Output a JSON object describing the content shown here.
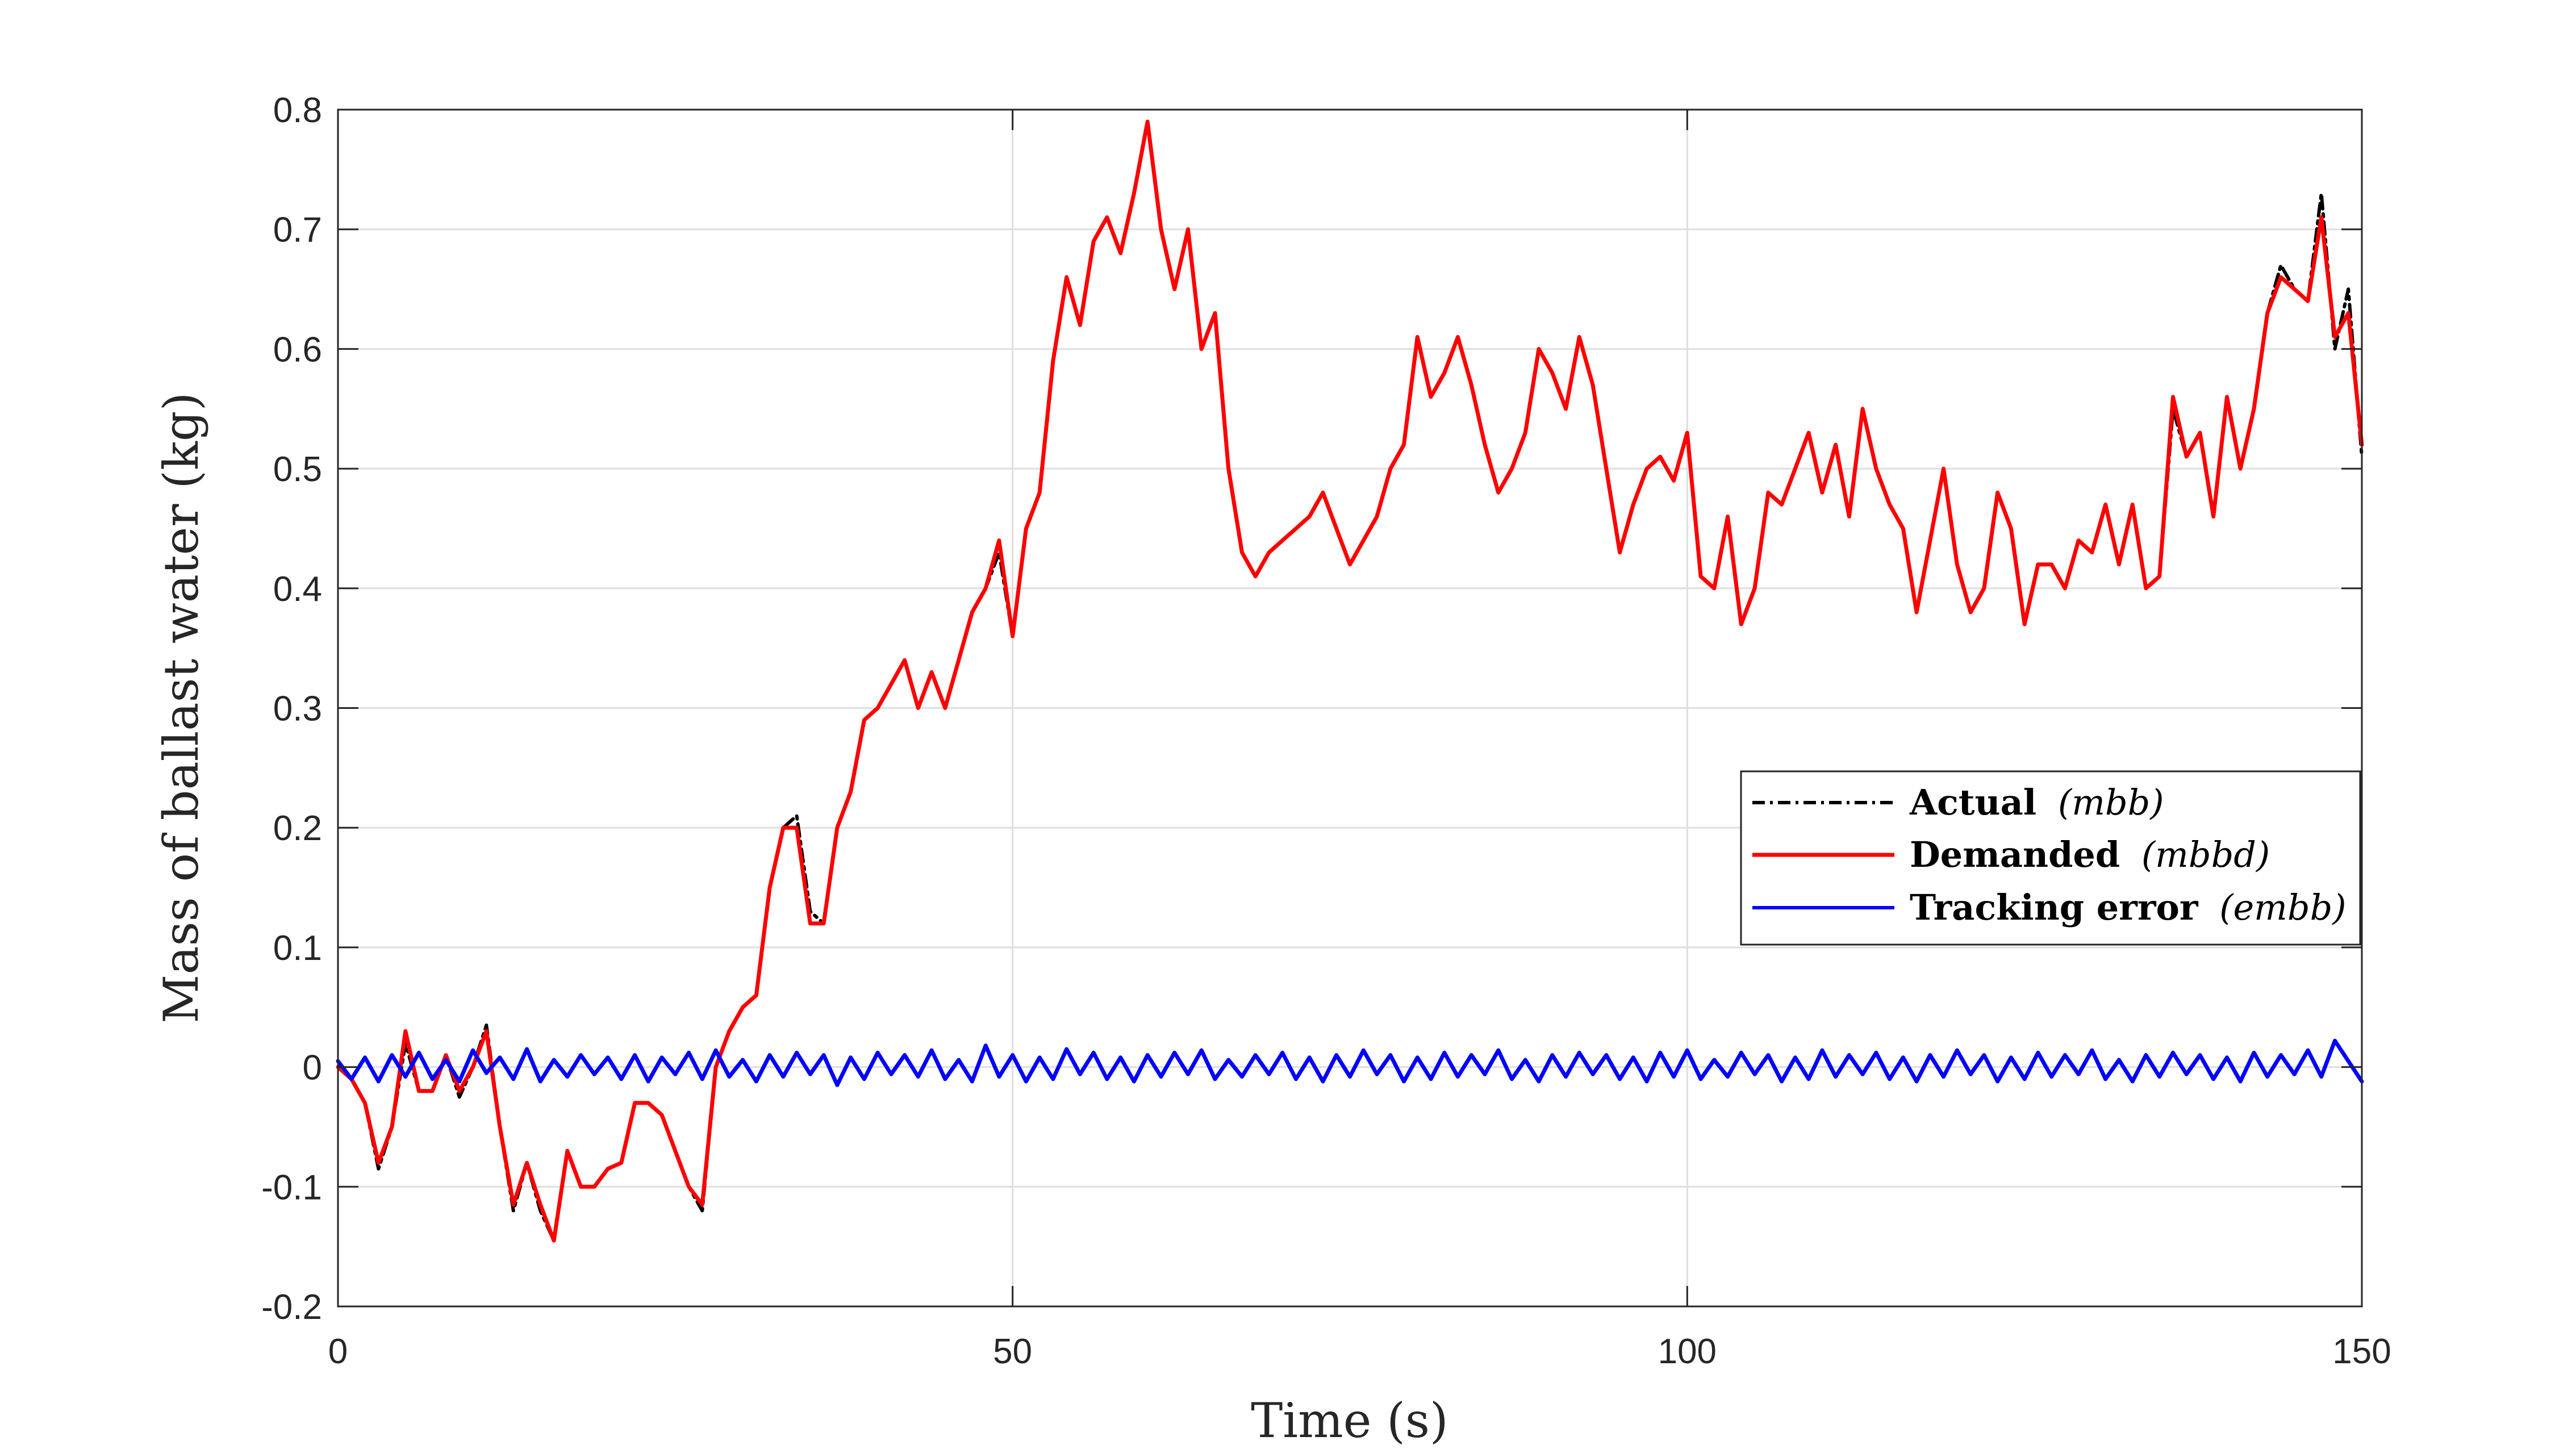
{
  "chart_data": {
    "type": "line",
    "title": "",
    "xlabel": "Time (s)",
    "ylabel": "Mass of ballast water (kg)",
    "xlim": [
      0,
      150
    ],
    "ylim": [
      -0.2,
      0.8
    ],
    "xticks": [
      0,
      50,
      100,
      150
    ],
    "yticks": [
      -0.2,
      -0.1,
      0,
      0.1,
      0.2,
      0.3,
      0.4,
      0.5,
      0.6,
      0.7,
      0.8
    ],
    "xtick_labels": [
      "0",
      "50",
      "100",
      "150"
    ],
    "ytick_labels": [
      "-0.2",
      "-0.1",
      "0",
      "0.1",
      "0.2",
      "0.3",
      "0.4",
      "0.5",
      "0.6",
      "0.7",
      "0.8"
    ],
    "grid": true,
    "legend_position": "right",
    "series": [
      {
        "name": "Actual (m_bb)",
        "label_bold": "Actual",
        "label_math": "(mbb)",
        "color": "#000000",
        "style": "dash-dot",
        "x": [
          0,
          1,
          2,
          3,
          4,
          5,
          6,
          7,
          8,
          9,
          10,
          11,
          12,
          13,
          14,
          15,
          16,
          17,
          18,
          19,
          20,
          21,
          22,
          23,
          24,
          25,
          26,
          27,
          28,
          29,
          30,
          31,
          32,
          33,
          34,
          35,
          36,
          37,
          38,
          39,
          40,
          41,
          42,
          43,
          44,
          45,
          46,
          47,
          48,
          49,
          50,
          51,
          52,
          53,
          54,
          55,
          56,
          57,
          58,
          59,
          60,
          61,
          62,
          63,
          64,
          65,
          66,
          67,
          68,
          69,
          70,
          71,
          72,
          73,
          74,
          75,
          76,
          77,
          78,
          79,
          80,
          81,
          82,
          83,
          84,
          85,
          86,
          87,
          88,
          89,
          90,
          91,
          92,
          93,
          94,
          95,
          96,
          97,
          98,
          99,
          100,
          101,
          102,
          103,
          104,
          105,
          106,
          107,
          108,
          109,
          110,
          111,
          112,
          113,
          114,
          115,
          116,
          117,
          118,
          119,
          120,
          121,
          122,
          123,
          124,
          125,
          126,
          127,
          128,
          129,
          130,
          131,
          132,
          133,
          134,
          135,
          136,
          137,
          138,
          139,
          140,
          141,
          142,
          143,
          144,
          145,
          146,
          147,
          148,
          149,
          150
        ],
        "y": [
          0.0,
          -0.01,
          -0.03,
          -0.085,
          -0.05,
          0.02,
          -0.02,
          -0.02,
          0.01,
          -0.025,
          0.0,
          0.035,
          -0.05,
          -0.12,
          -0.08,
          -0.12,
          -0.145,
          -0.07,
          -0.1,
          -0.1,
          -0.085,
          -0.08,
          -0.03,
          -0.03,
          -0.04,
          -0.07,
          -0.1,
          -0.12,
          0.0,
          0.03,
          0.05,
          0.06,
          0.15,
          0.2,
          0.21,
          0.13,
          0.12,
          0.2,
          0.23,
          0.29,
          0.3,
          0.32,
          0.34,
          0.3,
          0.33,
          0.3,
          0.34,
          0.38,
          0.4,
          0.43,
          0.36,
          0.45,
          0.48,
          0.59,
          0.66,
          0.62,
          0.69,
          0.71,
          0.68,
          0.73,
          0.79,
          0.7,
          0.65,
          0.7,
          0.6,
          0.63,
          0.5,
          0.43,
          0.41,
          0.43,
          0.44,
          0.45,
          0.46,
          0.48,
          0.45,
          0.42,
          0.44,
          0.46,
          0.5,
          0.52,
          0.61,
          0.56,
          0.58,
          0.61,
          0.57,
          0.52,
          0.48,
          0.5,
          0.53,
          0.6,
          0.58,
          0.55,
          0.61,
          0.57,
          0.5,
          0.43,
          0.47,
          0.5,
          0.51,
          0.49,
          0.53,
          0.41,
          0.4,
          0.46,
          0.37,
          0.4,
          0.48,
          0.47,
          0.5,
          0.53,
          0.48,
          0.52,
          0.46,
          0.55,
          0.5,
          0.47,
          0.45,
          0.38,
          0.44,
          0.5,
          0.42,
          0.38,
          0.4,
          0.48,
          0.45,
          0.37,
          0.42,
          0.42,
          0.4,
          0.44,
          0.43,
          0.47,
          0.42,
          0.47,
          0.4,
          0.41,
          0.55,
          0.51,
          0.53,
          0.46,
          0.56,
          0.5,
          0.55,
          0.63,
          0.67,
          0.65,
          0.64,
          0.73,
          0.6,
          0.65,
          0.51
        ]
      },
      {
        "name": "Demanded (m_bbd)",
        "label_bold": "Demanded",
        "label_math": "(mbbd)",
        "color": "#ff0000",
        "style": "solid",
        "x": [
          0,
          1,
          2,
          3,
          4,
          5,
          6,
          7,
          8,
          9,
          10,
          11,
          12,
          13,
          14,
          15,
          16,
          17,
          18,
          19,
          20,
          21,
          22,
          23,
          24,
          25,
          26,
          27,
          28,
          29,
          30,
          31,
          32,
          33,
          34,
          35,
          36,
          37,
          38,
          39,
          40,
          41,
          42,
          43,
          44,
          45,
          46,
          47,
          48,
          49,
          50,
          51,
          52,
          53,
          54,
          55,
          56,
          57,
          58,
          59,
          60,
          61,
          62,
          63,
          64,
          65,
          66,
          67,
          68,
          69,
          70,
          71,
          72,
          73,
          74,
          75,
          76,
          77,
          78,
          79,
          80,
          81,
          82,
          83,
          84,
          85,
          86,
          87,
          88,
          89,
          90,
          91,
          92,
          93,
          94,
          95,
          96,
          97,
          98,
          99,
          100,
          101,
          102,
          103,
          104,
          105,
          106,
          107,
          108,
          109,
          110,
          111,
          112,
          113,
          114,
          115,
          116,
          117,
          118,
          119,
          120,
          121,
          122,
          123,
          124,
          125,
          126,
          127,
          128,
          129,
          130,
          131,
          132,
          133,
          134,
          135,
          136,
          137,
          138,
          139,
          140,
          141,
          142,
          143,
          144,
          145,
          146,
          147,
          148,
          149,
          150
        ],
        "y": [
          0.0,
          -0.01,
          -0.03,
          -0.08,
          -0.05,
          0.03,
          -0.02,
          -0.02,
          0.01,
          -0.02,
          0.0,
          0.03,
          -0.05,
          -0.115,
          -0.08,
          -0.115,
          -0.145,
          -0.07,
          -0.1,
          -0.1,
          -0.085,
          -0.08,
          -0.03,
          -0.03,
          -0.04,
          -0.07,
          -0.1,
          -0.115,
          0.0,
          0.03,
          0.05,
          0.06,
          0.15,
          0.2,
          0.2,
          0.12,
          0.12,
          0.2,
          0.23,
          0.29,
          0.3,
          0.32,
          0.34,
          0.3,
          0.33,
          0.3,
          0.34,
          0.38,
          0.4,
          0.44,
          0.36,
          0.45,
          0.48,
          0.59,
          0.66,
          0.62,
          0.69,
          0.71,
          0.68,
          0.73,
          0.79,
          0.7,
          0.65,
          0.7,
          0.6,
          0.63,
          0.5,
          0.43,
          0.41,
          0.43,
          0.44,
          0.45,
          0.46,
          0.48,
          0.45,
          0.42,
          0.44,
          0.46,
          0.5,
          0.52,
          0.61,
          0.56,
          0.58,
          0.61,
          0.57,
          0.52,
          0.48,
          0.5,
          0.53,
          0.6,
          0.58,
          0.55,
          0.61,
          0.57,
          0.5,
          0.43,
          0.47,
          0.5,
          0.51,
          0.49,
          0.53,
          0.41,
          0.4,
          0.46,
          0.37,
          0.4,
          0.48,
          0.47,
          0.5,
          0.53,
          0.48,
          0.52,
          0.46,
          0.55,
          0.5,
          0.47,
          0.45,
          0.38,
          0.44,
          0.5,
          0.42,
          0.38,
          0.4,
          0.48,
          0.45,
          0.37,
          0.42,
          0.42,
          0.4,
          0.44,
          0.43,
          0.47,
          0.42,
          0.47,
          0.4,
          0.41,
          0.56,
          0.51,
          0.53,
          0.46,
          0.56,
          0.5,
          0.55,
          0.63,
          0.66,
          0.65,
          0.64,
          0.71,
          0.61,
          0.63,
          0.52
        ]
      },
      {
        "name": "Tracking error (e_mbb)",
        "label_bold": "Tracking error",
        "label_math": "(embb)",
        "color": "#0000ff",
        "style": "solid",
        "x": [
          0,
          1,
          2,
          3,
          4,
          5,
          6,
          7,
          8,
          9,
          10,
          11,
          12,
          13,
          14,
          15,
          16,
          17,
          18,
          19,
          20,
          21,
          22,
          23,
          24,
          25,
          26,
          27,
          28,
          29,
          30,
          31,
          32,
          33,
          34,
          35,
          36,
          37,
          38,
          39,
          40,
          41,
          42,
          43,
          44,
          45,
          46,
          47,
          48,
          49,
          50,
          51,
          52,
          53,
          54,
          55,
          56,
          57,
          58,
          59,
          60,
          61,
          62,
          63,
          64,
          65,
          66,
          67,
          68,
          69,
          70,
          71,
          72,
          73,
          74,
          75,
          76,
          77,
          78,
          79,
          80,
          81,
          82,
          83,
          84,
          85,
          86,
          87,
          88,
          89,
          90,
          91,
          92,
          93,
          94,
          95,
          96,
          97,
          98,
          99,
          100,
          101,
          102,
          103,
          104,
          105,
          106,
          107,
          108,
          109,
          110,
          111,
          112,
          113,
          114,
          115,
          116,
          117,
          118,
          119,
          120,
          121,
          122,
          123,
          124,
          125,
          126,
          127,
          128,
          129,
          130,
          131,
          132,
          133,
          134,
          135,
          136,
          137,
          138,
          139,
          140,
          141,
          142,
          143,
          144,
          145,
          146,
          147,
          148,
          149,
          150
        ],
        "y": [
          0.005,
          -0.01,
          0.008,
          -0.012,
          0.01,
          -0.008,
          0.012,
          -0.01,
          0.006,
          -0.012,
          0.014,
          -0.005,
          0.008,
          -0.01,
          0.015,
          -0.012,
          0.006,
          -0.008,
          0.01,
          -0.006,
          0.008,
          -0.01,
          0.01,
          -0.012,
          0.008,
          -0.006,
          0.012,
          -0.01,
          0.014,
          -0.008,
          0.006,
          -0.012,
          0.01,
          -0.008,
          0.012,
          -0.006,
          0.01,
          -0.015,
          0.008,
          -0.01,
          0.012,
          -0.006,
          0.01,
          -0.008,
          0.014,
          -0.01,
          0.006,
          -0.012,
          0.018,
          -0.008,
          0.01,
          -0.012,
          0.008,
          -0.01,
          0.015,
          -0.006,
          0.012,
          -0.01,
          0.008,
          -0.012,
          0.01,
          -0.008,
          0.012,
          -0.006,
          0.014,
          -0.01,
          0.006,
          -0.008,
          0.01,
          -0.006,
          0.012,
          -0.01,
          0.008,
          -0.012,
          0.01,
          -0.008,
          0.014,
          -0.006,
          0.01,
          -0.012,
          0.008,
          -0.01,
          0.012,
          -0.008,
          0.01,
          -0.006,
          0.014,
          -0.01,
          0.006,
          -0.012,
          0.01,
          -0.008,
          0.012,
          -0.006,
          0.01,
          -0.01,
          0.008,
          -0.012,
          0.012,
          -0.008,
          0.014,
          -0.01,
          0.006,
          -0.008,
          0.012,
          -0.006,
          0.01,
          -0.012,
          0.008,
          -0.01,
          0.014,
          -0.008,
          0.01,
          -0.006,
          0.012,
          -0.01,
          0.008,
          -0.012,
          0.01,
          -0.008,
          0.014,
          -0.006,
          0.01,
          -0.012,
          0.008,
          -0.01,
          0.012,
          -0.008,
          0.01,
          -0.006,
          0.014,
          -0.01,
          0.006,
          -0.012,
          0.01,
          -0.008,
          0.012,
          -0.006,
          0.01,
          -0.01,
          0.008,
          -0.012,
          0.012,
          -0.008,
          0.01,
          -0.006,
          0.014,
          -0.008,
          0.022,
          0.005,
          -0.012
        ]
      }
    ]
  }
}
